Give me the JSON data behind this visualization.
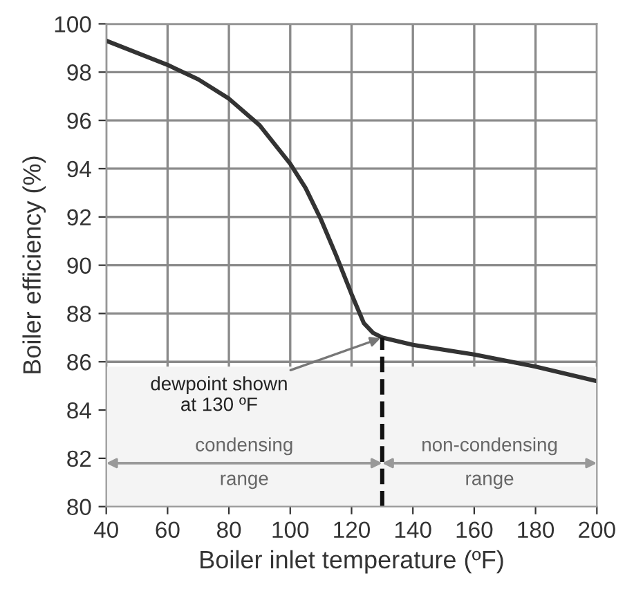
{
  "chart_data": {
    "type": "line",
    "xlabel": "Boiler inlet temperature (ºF)",
    "ylabel": "Boiler efficiency (%)",
    "x": [
      40,
      50,
      60,
      70,
      80,
      90,
      100,
      105,
      110,
      115,
      120,
      124,
      127,
      130,
      140,
      160,
      180,
      200
    ],
    "series": [
      {
        "color": "#333333",
        "values": [
          99.3,
          98.8,
          98.3,
          97.7,
          96.9,
          95.8,
          94.2,
          93.2,
          91.9,
          90.4,
          88.8,
          87.6,
          87.2,
          87.0,
          86.7,
          86.3,
          85.8,
          85.2
        ]
      }
    ],
    "xlim": [
      40,
      200
    ],
    "xticks": [
      40,
      60,
      80,
      100,
      120,
      140,
      160,
      180,
      200
    ],
    "ylim": [
      80,
      100
    ],
    "yticks": [
      80,
      82,
      84,
      86,
      88,
      90,
      92,
      94,
      96,
      98,
      100
    ],
    "grid": true,
    "marker": "none",
    "line_style": "solid",
    "annotations": [
      {
        "text": "dewpoint shown\nat 130 ºF",
        "x": 130,
        "y": 87
      }
    ],
    "ref_lines": [
      {
        "axis": "x",
        "value": 130,
        "line_style": "dashed",
        "color": "#111111"
      }
    ],
    "bands": [
      {
        "axis": "x",
        "from": 40,
        "to": 130,
        "label": "condensing\nrange",
        "color": "#f4f4f4"
      },
      {
        "axis": "x",
        "from": 130,
        "to": 200,
        "label": "non-condensing\nrange",
        "color": "#f4f4f4"
      }
    ]
  }
}
